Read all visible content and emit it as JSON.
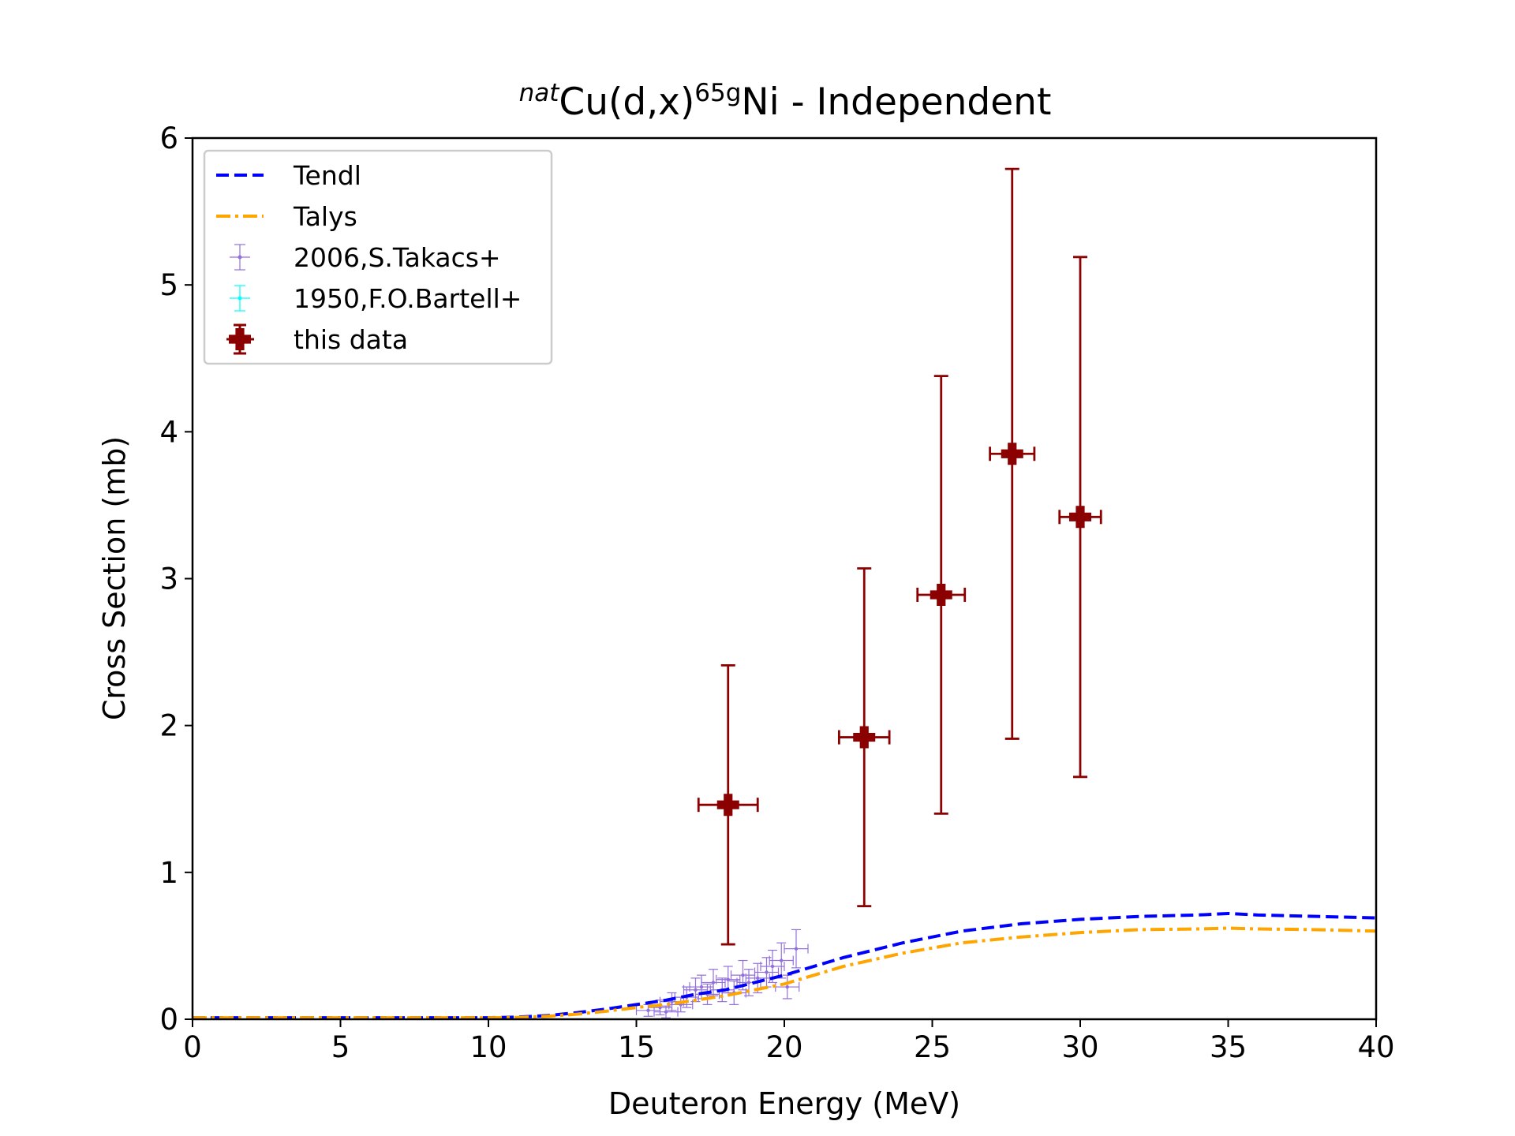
{
  "chart_data": {
    "type": "scatter",
    "title": {
      "prefix_sup": "nat",
      "part1": "Cu(d,x)",
      "sup2": "65g",
      "part2": "Ni - Independent"
    },
    "xlabel": "Deuteron Energy (MeV)",
    "ylabel": "Cross Section (mb)",
    "xlim": [
      0,
      40
    ],
    "ylim": [
      0,
      6
    ],
    "xticks": [
      0,
      5,
      10,
      15,
      20,
      25,
      30,
      35,
      40
    ],
    "yticks": [
      0,
      1,
      2,
      3,
      4,
      5,
      6
    ],
    "grid": false,
    "legend_position": "top-left",
    "series": [
      {
        "name": "Tendl",
        "kind": "line",
        "style": "dashed",
        "color": "#0000ff",
        "x": [
          0,
          5,
          10,
          11,
          12,
          13,
          14,
          15,
          16,
          17,
          18,
          19,
          20,
          22,
          24,
          26,
          28,
          30,
          32,
          34,
          35,
          36,
          38,
          40
        ],
        "y": [
          0.01,
          0.01,
          0.01,
          0.015,
          0.025,
          0.045,
          0.07,
          0.1,
          0.13,
          0.17,
          0.2,
          0.25,
          0.3,
          0.42,
          0.52,
          0.6,
          0.65,
          0.68,
          0.7,
          0.71,
          0.72,
          0.71,
          0.7,
          0.69
        ]
      },
      {
        "name": "Talys",
        "kind": "line",
        "style": "dashdot",
        "color": "#ffa500",
        "x": [
          0,
          5,
          10,
          11,
          12,
          13,
          14,
          15,
          16,
          17,
          18,
          19,
          20,
          22,
          24,
          26,
          28,
          30,
          32,
          34,
          35,
          36,
          38,
          40
        ],
        "y": [
          0.01,
          0.01,
          0.01,
          0.012,
          0.02,
          0.035,
          0.055,
          0.08,
          0.1,
          0.13,
          0.16,
          0.2,
          0.24,
          0.36,
          0.45,
          0.52,
          0.56,
          0.59,
          0.61,
          0.615,
          0.62,
          0.615,
          0.61,
          0.6
        ]
      },
      {
        "name": "2006,S.Takacs+",
        "kind": "errorbar",
        "color": "#9370db",
        "points": [
          {
            "x": 15.4,
            "y": 0.06,
            "xerr": 0.4,
            "yerr": 0.04
          },
          {
            "x": 15.8,
            "y": 0.08,
            "xerr": 0.4,
            "yerr": 0.05
          },
          {
            "x": 16.0,
            "y": 0.05,
            "xerr": 0.4,
            "yerr": 0.04
          },
          {
            "x": 16.2,
            "y": 0.12,
            "xerr": 0.4,
            "yerr": 0.06
          },
          {
            "x": 16.5,
            "y": 0.1,
            "xerr": 0.4,
            "yerr": 0.05
          },
          {
            "x": 16.7,
            "y": 0.15,
            "xerr": 0.4,
            "yerr": 0.07
          },
          {
            "x": 17.0,
            "y": 0.2,
            "xerr": 0.4,
            "yerr": 0.08
          },
          {
            "x": 17.2,
            "y": 0.22,
            "xerr": 0.4,
            "yerr": 0.08
          },
          {
            "x": 17.4,
            "y": 0.17,
            "xerr": 0.4,
            "yerr": 0.07
          },
          {
            "x": 17.6,
            "y": 0.25,
            "xerr": 0.4,
            "yerr": 0.09
          },
          {
            "x": 17.9,
            "y": 0.2,
            "xerr": 0.4,
            "yerr": 0.08
          },
          {
            "x": 18.1,
            "y": 0.27,
            "xerr": 0.4,
            "yerr": 0.09
          },
          {
            "x": 18.3,
            "y": 0.18,
            "xerr": 0.4,
            "yerr": 0.08
          },
          {
            "x": 18.6,
            "y": 0.3,
            "xerr": 0.4,
            "yerr": 0.1
          },
          {
            "x": 18.8,
            "y": 0.25,
            "xerr": 0.4,
            "yerr": 0.09
          },
          {
            "x": 19.1,
            "y": 0.28,
            "xerr": 0.4,
            "yerr": 0.1
          },
          {
            "x": 19.4,
            "y": 0.32,
            "xerr": 0.4,
            "yerr": 0.1
          },
          {
            "x": 19.6,
            "y": 0.36,
            "xerr": 0.4,
            "yerr": 0.11
          },
          {
            "x": 19.9,
            "y": 0.4,
            "xerr": 0.4,
            "yerr": 0.12
          },
          {
            "x": 20.1,
            "y": 0.22,
            "xerr": 0.4,
            "yerr": 0.08
          },
          {
            "x": 20.4,
            "y": 0.48,
            "xerr": 0.4,
            "yerr": 0.13
          }
        ]
      },
      {
        "name": "1950,F.O.Bartell+",
        "kind": "errorbar",
        "color": "#00ffff",
        "points": []
      },
      {
        "name": "this data",
        "kind": "errorbar",
        "color": "#8b0000",
        "points": [
          {
            "x": 18.1,
            "y": 1.46,
            "xerr": 1.0,
            "yerr": 0.95
          },
          {
            "x": 22.7,
            "y": 1.92,
            "xerr": 0.85,
            "yerr": 1.15
          },
          {
            "x": 25.3,
            "y": 2.89,
            "xerr": 0.8,
            "yerr": 1.49
          },
          {
            "x": 27.7,
            "y": 3.85,
            "xerr": 0.75,
            "yerr": 1.94
          },
          {
            "x": 30.0,
            "y": 3.42,
            "xerr": 0.7,
            "yerr": 1.77
          }
        ]
      }
    ]
  }
}
